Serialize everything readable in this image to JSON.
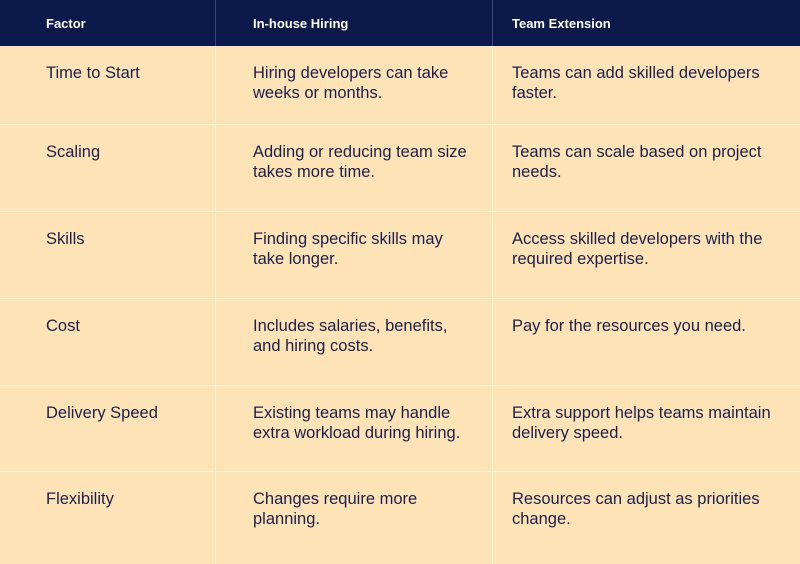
{
  "headers": [
    "Factor",
    "In-house Hiring",
    "Team Extension"
  ],
  "rows": [
    [
      "Time to Start",
      "Hiring developers can take weeks or months.",
      "Teams can add skilled developers faster."
    ],
    [
      "Scaling",
      "Adding or reducing team size takes more time.",
      "Teams can scale based on project needs."
    ],
    [
      "Skills",
      "Finding specific skills may take longer.",
      "Access skilled developers with the required expertise."
    ],
    [
      "Cost",
      "Includes salaries, benefits, and hiring costs.",
      "Pay for the resources you need."
    ],
    [
      "Delivery Speed",
      "Existing teams may handle extra workload during hiring.",
      "Extra support helps teams maintain delivery speed."
    ],
    [
      "Flexibility",
      "Changes require more planning.",
      "Resources can adjust as priorities change."
    ]
  ],
  "colors": {
    "header_bg": "#0c1a4b",
    "body_bg": "#fde3b6",
    "text": "#1b1f4b"
  }
}
